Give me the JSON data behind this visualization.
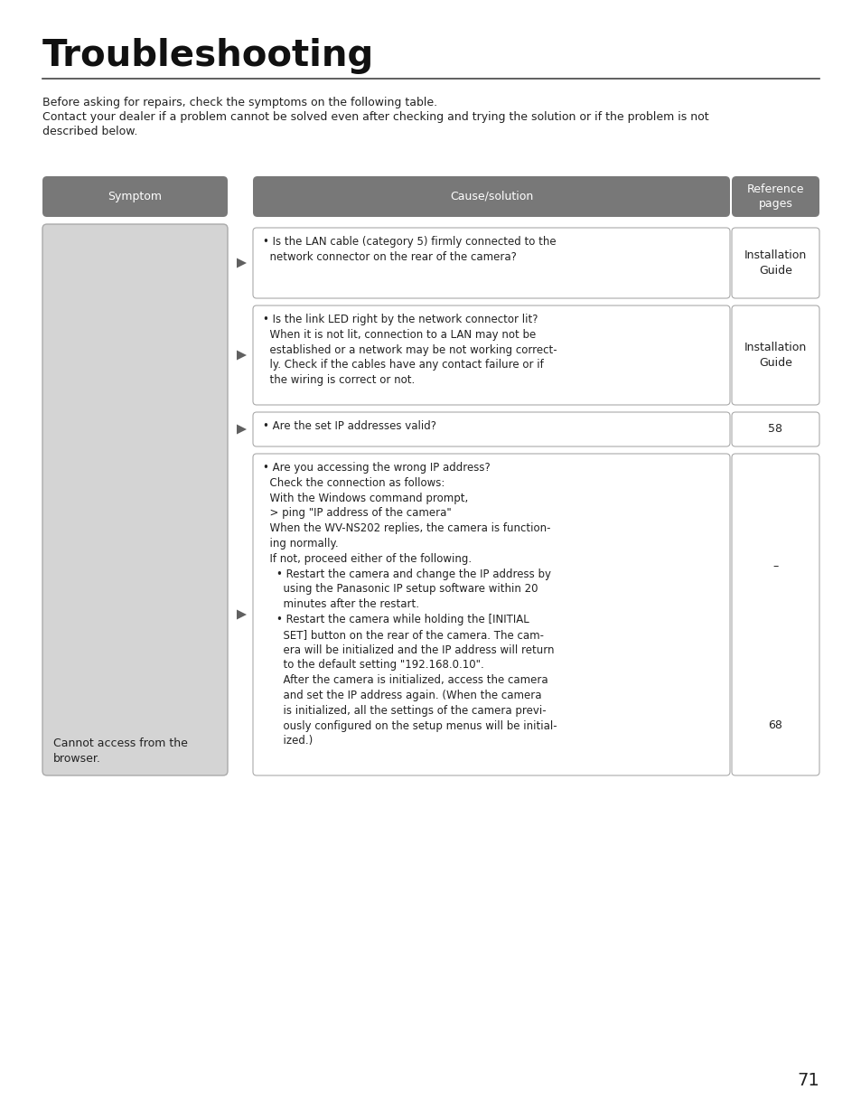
{
  "title": "Troubleshooting",
  "intro_line1": "Before asking for repairs, check the symptoms on the following table.",
  "intro_line2": "Contact your dealer if a problem cannot be solved even after checking and trying the solution or if the problem is not",
  "intro_line3": "described below.",
  "header_symptom": "Symptom",
  "header_cause": "Cause/solution",
  "header_ref": "Reference\npages",
  "header_bg": "#787878",
  "header_text_color": "#ffffff",
  "symptom_bg": "#d4d4d4",
  "symptom_text": "Cannot access from the\nbrowser.",
  "row0_cause": "• Is the LAN cable (category 5) firmly connected to the\n  network connector on the rear of the camera?",
  "row0_ref": "Installation\nGuide",
  "row1_cause": "• Is the link LED right by the network connector lit?\n  When it is not lit, connection to a LAN may not be\n  established or a network may be not working correct-\n  ly. Check if the cables have any contact failure or if\n  the wiring is correct or not.",
  "row1_ref": "Installation\nGuide",
  "row2_cause": "• Are the set IP addresses valid?",
  "row2_ref": "58",
  "row3_cause": "• Are you accessing the wrong IP address?\n  Check the connection as follows:\n  With the Windows command prompt,\n  > ping \"IP address of the camera\"\n  When the WV-NS202 replies, the camera is function-\n  ing normally.\n  If not, proceed either of the following.\n    • Restart the camera and change the IP address by\n      using the Panasonic IP setup software within 20\n      minutes after the restart.\n    • Restart the camera while holding the [INITIAL\n      SET] button on the rear of the camera. The cam-\n      era will be initialized and the IP address will return\n      to the default setting \"192.168.0.10\".\n      After the camera is initialized, access the camera\n      and set the IP address again. (When the camera\n      is initialized, all the settings of the camera previ-\n      ously configured on the setup menus will be initial-\n      ized.)",
  "row3_ref_top": "–",
  "row3_ref_bottom": "68",
  "page_number": "71",
  "bg_color": "#ffffff",
  "border_color": "#aaaaaa",
  "arrow_color": "#606060",
  "text_color": "#222222"
}
